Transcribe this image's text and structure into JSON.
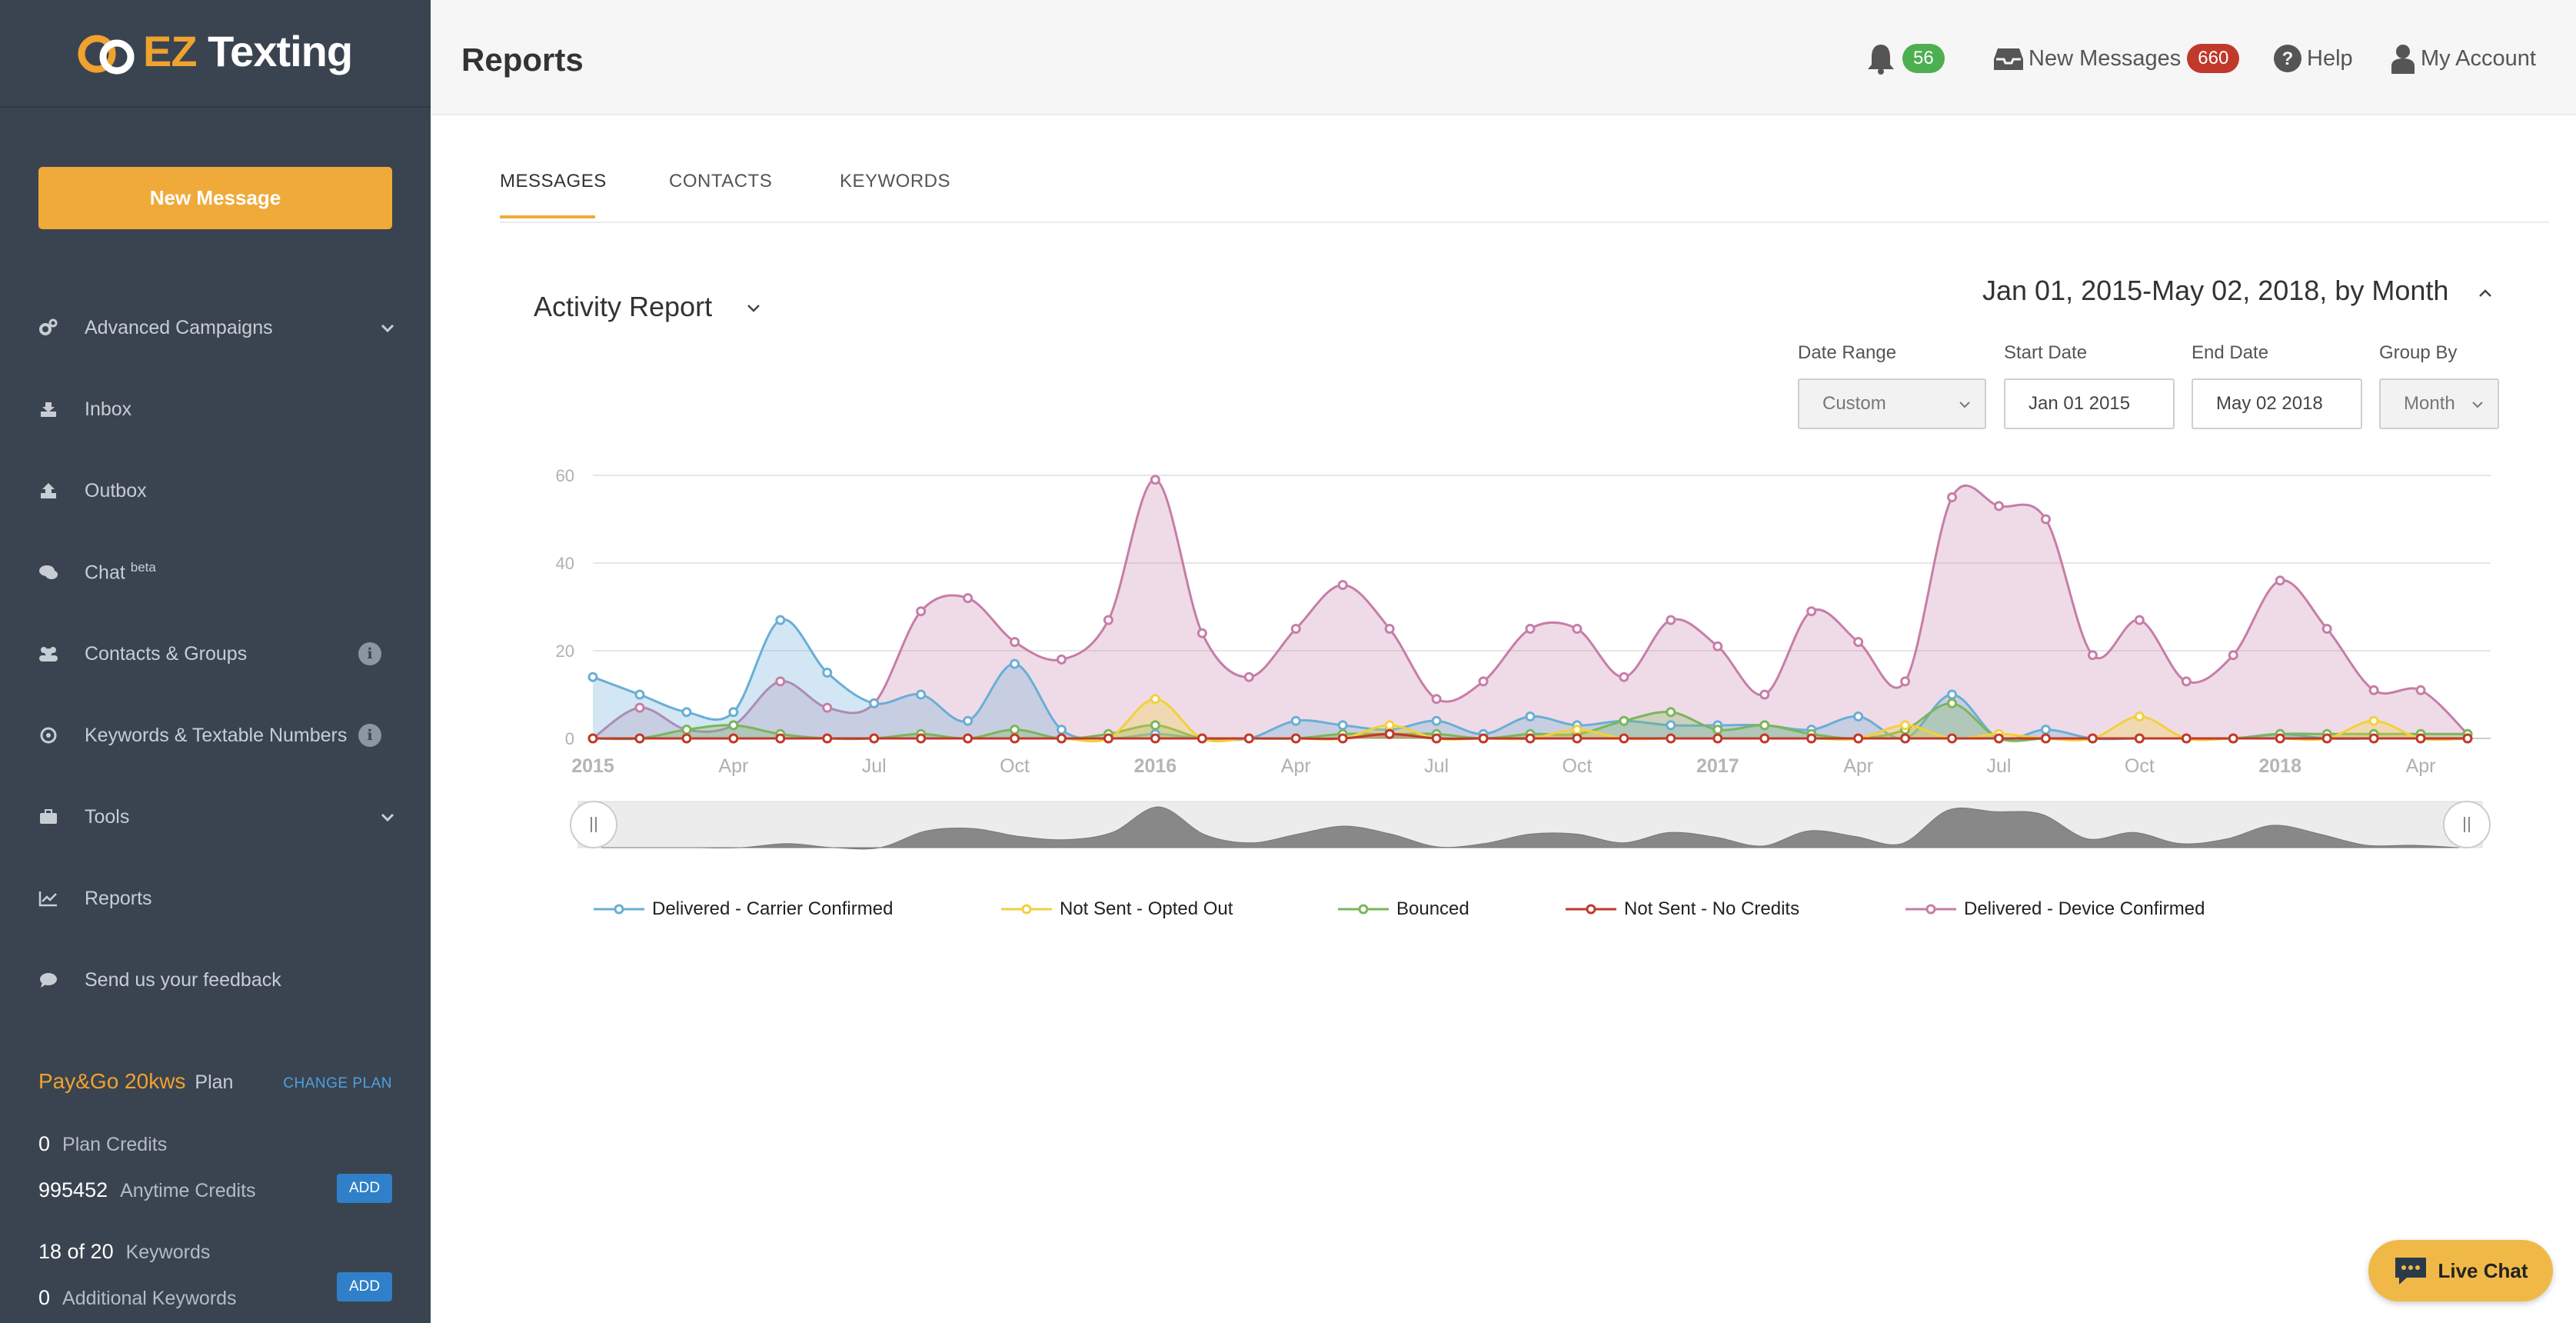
{
  "brand": {
    "logo_prefix": "EZ",
    "logo_suffix": " Texting"
  },
  "sidebar": {
    "new_message": "New Message",
    "items": [
      {
        "label": "Advanced Campaigns",
        "icon": "cogs-icon",
        "expandable": true
      },
      {
        "label": "Inbox",
        "icon": "inbox-download-icon"
      },
      {
        "label": "Outbox",
        "icon": "outbox-upload-icon"
      },
      {
        "label": "Chat",
        "sup": "beta",
        "icon": "chat-bubble-icon"
      },
      {
        "label": "Contacts & Groups",
        "icon": "users-icon",
        "info": true
      },
      {
        "label": "Keywords & Textable Numbers",
        "icon": "target-icon",
        "info": true
      },
      {
        "label": "Tools",
        "icon": "toolbox-icon",
        "expandable": true
      },
      {
        "label": "Reports",
        "icon": "line-chart-icon"
      },
      {
        "label": "Send us your feedback",
        "icon": "comment-icon"
      }
    ],
    "plan": {
      "name": "Pay&Go 20kws",
      "name_suffix": "Plan",
      "change_label": "CHANGE PLAN",
      "plan_credits": "0",
      "plan_credits_label": "Plan Credits",
      "anytime_credits": "995452",
      "anytime_credits_label": "Anytime Credits",
      "keywords": "18 of 20",
      "keywords_label": "Keywords",
      "additional_keywords": "0",
      "additional_keywords_label": "Additional Keywords",
      "add_label": "ADD"
    }
  },
  "header": {
    "title": "Reports",
    "notifications_count": "56",
    "new_messages_label": "New Messages",
    "new_messages_count": "660",
    "help_label": "Help",
    "account_label": "My Account"
  },
  "tabs": [
    "MESSAGES",
    "CONTACTS",
    "KEYWORDS"
  ],
  "report": {
    "title": "Activity Report",
    "date_summary": "Jan 01, 2015-May 02, 2018, by Month",
    "filters": {
      "date_range_label": "Date Range",
      "date_range_value": "Custom",
      "start_date_label": "Start Date",
      "start_date_value": "Jan 01 2015",
      "end_date_label": "End Date",
      "end_date_value": "May 02 2018",
      "group_by_label": "Group By",
      "group_by_value": "Month"
    }
  },
  "chart_data": {
    "type": "area",
    "x": [
      "2015-01",
      "2015-02",
      "2015-03",
      "2015-04",
      "2015-05",
      "2015-06",
      "2015-07",
      "2015-08",
      "2015-09",
      "2015-10",
      "2015-11",
      "2015-12",
      "2016-01",
      "2016-02",
      "2016-03",
      "2016-04",
      "2016-05",
      "2016-06",
      "2016-07",
      "2016-08",
      "2016-09",
      "2016-10",
      "2016-11",
      "2016-12",
      "2017-01",
      "2017-02",
      "2017-03",
      "2017-04",
      "2017-05",
      "2017-06",
      "2017-07",
      "2017-08",
      "2017-09",
      "2017-10",
      "2017-11",
      "2017-12",
      "2018-01",
      "2018-02",
      "2018-03",
      "2018-04",
      "2018-05"
    ],
    "x_tick_labels": [
      "2015",
      "Apr",
      "Jul",
      "Oct",
      "2016",
      "Apr",
      "Jul",
      "Oct",
      "2017",
      "Apr",
      "Jul",
      "Oct",
      "2018",
      "Apr"
    ],
    "ylim": [
      0,
      60
    ],
    "y_ticks": [
      0,
      20,
      40,
      60
    ],
    "grid": true,
    "legend_position": "bottom",
    "series": [
      {
        "name": "Delivered - Carrier Confirmed",
        "color": "#6aaed6",
        "values": [
          14,
          10,
          6,
          6,
          27,
          15,
          8,
          10,
          4,
          17,
          2,
          0,
          1,
          0,
          0,
          4,
          3,
          2,
          4,
          1,
          5,
          3,
          4,
          3,
          3,
          3,
          2,
          5,
          0,
          10,
          0,
          2,
          0,
          0,
          0,
          0,
          1,
          0,
          0,
          0,
          0
        ]
      },
      {
        "name": "Not Sent - Opted Out",
        "color": "#f2d03c",
        "values": [
          0,
          0,
          0,
          0,
          0,
          0,
          0,
          0,
          0,
          0,
          0,
          0,
          9,
          0,
          0,
          0,
          0,
          3,
          0,
          0,
          0,
          2,
          0,
          0,
          0,
          0,
          0,
          0,
          3,
          0,
          1,
          0,
          0,
          5,
          0,
          0,
          0,
          0,
          4,
          0,
          0
        ]
      },
      {
        "name": "Bounced",
        "color": "#7cb55a",
        "values": [
          0,
          0,
          2,
          3,
          1,
          0,
          0,
          1,
          0,
          2,
          0,
          1,
          3,
          0,
          0,
          0,
          1,
          1,
          1,
          0,
          1,
          1,
          4,
          6,
          2,
          3,
          1,
          0,
          2,
          8,
          0,
          0,
          0,
          0,
          0,
          0,
          1,
          1,
          1,
          1,
          1
        ]
      },
      {
        "name": "Not Sent - No Credits",
        "color": "#c0392b",
        "values": [
          0,
          0,
          0,
          0,
          0,
          0,
          0,
          0,
          0,
          0,
          0,
          0,
          0,
          0,
          0,
          0,
          0,
          1,
          0,
          0,
          0,
          0,
          0,
          0,
          0,
          0,
          0,
          0,
          0,
          0,
          0,
          0,
          0,
          0,
          0,
          0,
          0,
          0,
          0,
          0,
          0
        ]
      },
      {
        "name": "Delivered - Device Confirmed",
        "color": "#c77da8",
        "values": [
          0,
          7,
          2,
          3,
          13,
          7,
          8,
          29,
          32,
          22,
          18,
          27,
          59,
          24,
          14,
          25,
          35,
          25,
          9,
          13,
          25,
          25,
          14,
          27,
          21,
          10,
          29,
          22,
          13,
          55,
          53,
          50,
          19,
          27,
          13,
          19,
          36,
          25,
          11,
          11,
          1
        ]
      }
    ]
  },
  "live_chat_label": "Live Chat"
}
